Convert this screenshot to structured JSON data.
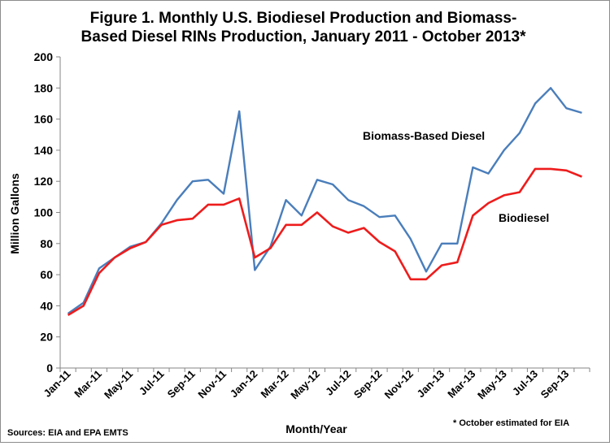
{
  "chart_data": {
    "type": "line",
    "title_line1": "Figure 1. Monthly U.S.  Biodiesel Production and Biomass-",
    "title_line2": "Based Diesel RINs Production, January 2011 - October 2013*",
    "xlabel": "Month/Year",
    "ylabel": "Million Gallons",
    "ylim": [
      0,
      200
    ],
    "yticks": [
      0,
      20,
      40,
      60,
      80,
      100,
      120,
      140,
      160,
      180,
      200
    ],
    "x": [
      "Jan-11",
      "Feb-11",
      "Mar-11",
      "Apr-11",
      "May-11",
      "Jun-11",
      "Jul-11",
      "Aug-11",
      "Sep-11",
      "Oct-11",
      "Nov-11",
      "Dec-11",
      "Jan-12",
      "Feb-12",
      "Mar-12",
      "Apr-12",
      "May-12",
      "Jun-12",
      "Jul-12",
      "Aug-12",
      "Sep-12",
      "Oct-12",
      "Nov-12",
      "Dec-12",
      "Jan-13",
      "Feb-13",
      "Mar-13",
      "Apr-13",
      "May-13",
      "Jun-13",
      "Jul-13",
      "Aug-13",
      "Sep-13",
      "Oct-13"
    ],
    "xtick_labels": [
      "Jan-11",
      "Mar-11",
      "May-11",
      "Jul-11",
      "Sep-11",
      "Nov-11",
      "Jan-12",
      "Mar-12",
      "May-12",
      "Jul-12",
      "Sep-12",
      "Nov-12",
      "Jan-13",
      "Mar-13",
      "May-13",
      "Jul-13",
      "Sep-13"
    ],
    "grid": false,
    "series": [
      {
        "name": "Biomass-Based Diesel",
        "color": "#4a7ebb",
        "values": [
          35,
          42,
          64,
          71,
          78,
          81,
          93,
          108,
          120,
          121,
          112,
          165,
          63,
          78,
          108,
          98,
          121,
          118,
          108,
          104,
          97,
          98,
          83,
          62,
          80,
          80,
          129,
          125,
          140,
          151,
          170,
          180,
          167,
          164
        ]
      },
      {
        "name": "Biodiesel",
        "color": "#ee1c1c",
        "values": [
          34,
          40,
          61,
          71,
          77,
          81,
          92,
          95,
          96,
          105,
          105,
          109,
          71,
          77,
          92,
          92,
          100,
          91,
          87,
          90,
          81,
          75,
          57,
          57,
          66,
          68,
          98,
          106,
          111,
          113,
          128,
          128,
          127,
          123
        ]
      }
    ],
    "annotations": {
      "biomass_label": "Biomass-Based Diesel",
      "biodiesel_label": "Biodiesel"
    },
    "source_note": "Sources: EIA and EPA EMTS",
    "footnote": "* October estimated for EIA"
  }
}
